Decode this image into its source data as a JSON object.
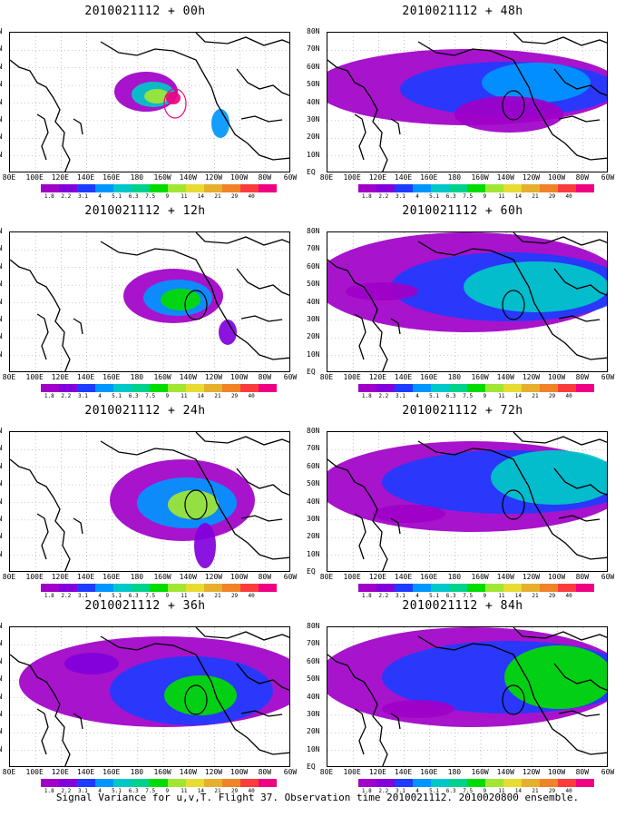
{
  "caption": "Signal Variance for u,v,T. Flight 37. Observation time 2010021112. 2010020800 ensemble.",
  "lat_labels": [
    "80N",
    "70N",
    "60N",
    "50N",
    "40N",
    "30N",
    "20N",
    "10N",
    "EQ"
  ],
  "lon_labels": [
    "80E",
    "100E",
    "120E",
    "140E",
    "160E",
    "180",
    "160W",
    "140W",
    "120W",
    "100W",
    "80W",
    "60W"
  ],
  "colorbar": {
    "levels": [
      "1.8",
      "2.2",
      "3.1",
      "4",
      "5.1",
      "6.3",
      "7.5",
      "9",
      "11",
      "14",
      "21",
      "29",
      "40"
    ],
    "colors": [
      "#a000c8",
      "#8200dc",
      "#1e3cff",
      "#0096ff",
      "#00c8c8",
      "#00d28c",
      "#00dc00",
      "#a0e632",
      "#e6dc32",
      "#e6af2d",
      "#f08228",
      "#fa3c3c",
      "#f00082"
    ]
  },
  "panels": [
    {
      "title": "2010021112 + 00h"
    },
    {
      "title": "2010021112 + 48h"
    },
    {
      "title": "2010021112 + 12h"
    },
    {
      "title": "2010021112 + 60h"
    },
    {
      "title": "2010021112 + 24h"
    },
    {
      "title": "2010021112 + 72h"
    },
    {
      "title": "2010021112 + 36h"
    },
    {
      "title": "2010021112 + 84h"
    }
  ]
}
